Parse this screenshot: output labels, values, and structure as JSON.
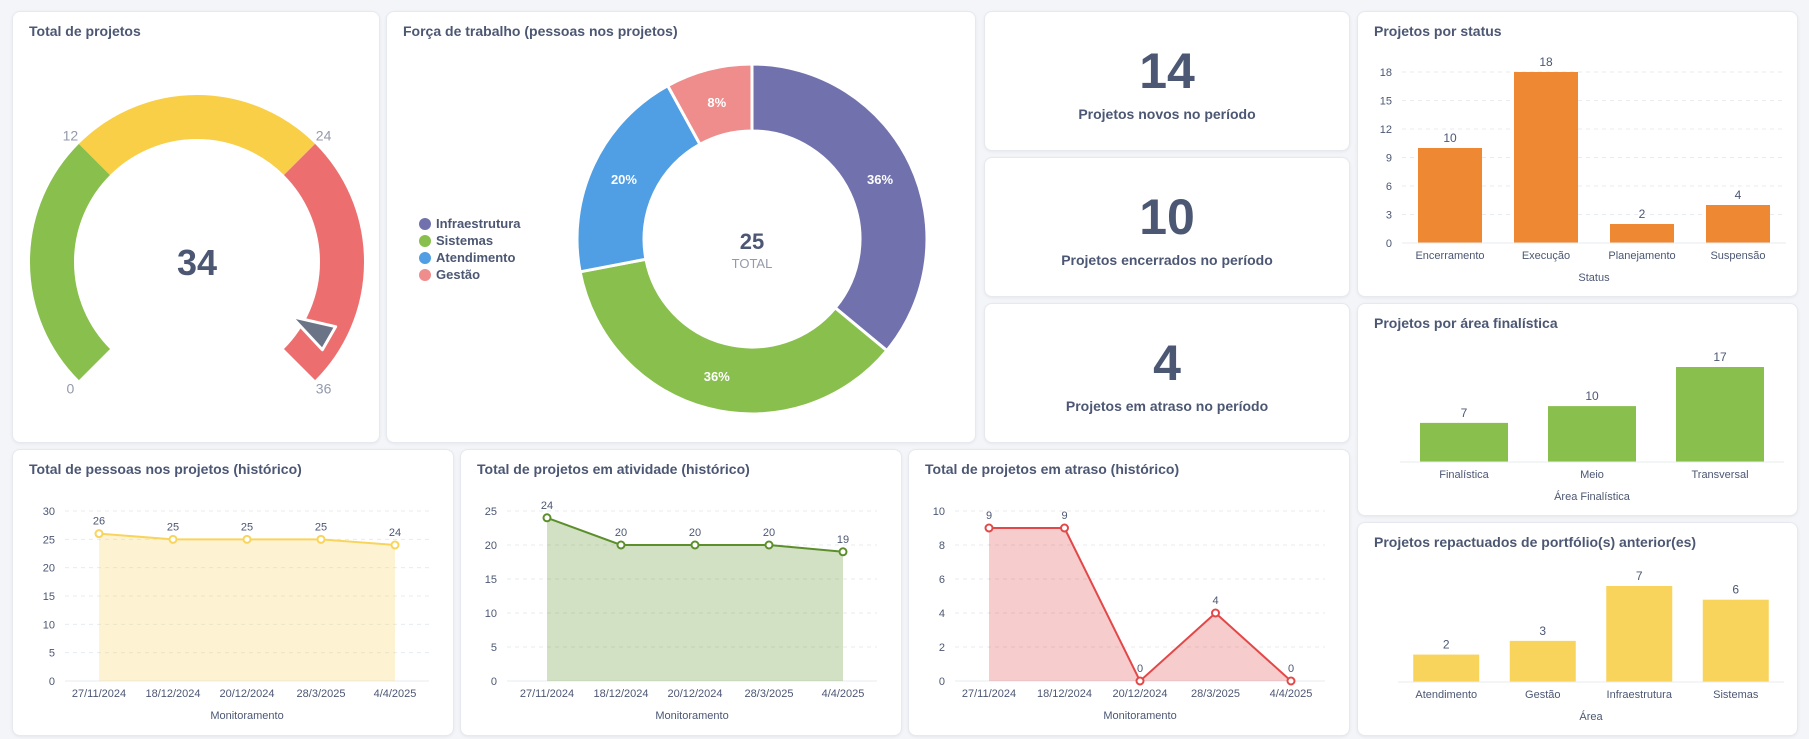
{
  "colors": {
    "purple": "#7172ad",
    "green": "#88bf4d",
    "blue": "#509ee3",
    "pink": "#ef8c8c",
    "orange": "#ef8832",
    "yellow": "#f9d45c",
    "red": "#ed6e6e",
    "gauge_yellow": "#f9cf48",
    "line_yellow": "#f9d45c",
    "line_green": "#5c8f2b",
    "line_red": "#e34848"
  },
  "gauge": {
    "title": "Total de projetos",
    "value": "34",
    "min": 0,
    "max": 36,
    "segments": [
      {
        "from": 0,
        "to": 12,
        "color": "#88bf4d"
      },
      {
        "from": 12,
        "to": 24,
        "color": "#f9cf48"
      },
      {
        "from": 24,
        "to": 36,
        "color": "#ed6e6e"
      }
    ],
    "tick_labels": [
      "0",
      "12",
      "24",
      "36"
    ]
  },
  "donut": {
    "title": "Força de trabalho (pessoas nos projetos)",
    "total": "25",
    "total_label": "TOTAL",
    "legend": [
      {
        "label": "Infraestrutura",
        "color": "#7172ad"
      },
      {
        "label": "Sistemas",
        "color": "#88bf4d"
      },
      {
        "label": "Atendimento",
        "color": "#509ee3"
      },
      {
        "label": "Gestão",
        "color": "#ef8c8c"
      }
    ]
  },
  "kpis": [
    {
      "value": "14",
      "label": "Projetos novos no período"
    },
    {
      "value": "10",
      "label": "Projetos encerrados no período"
    },
    {
      "value": "4",
      "label": "Projetos em atraso no período"
    }
  ],
  "chart_data": [
    {
      "type": "pie",
      "title": "Força de trabalho (pessoas nos projetos)",
      "categories": [
        "Infraestrutura",
        "Sistemas",
        "Atendimento",
        "Gestão"
      ],
      "values": [
        9,
        9,
        5,
        2
      ],
      "labels": [
        "36%",
        "36%",
        "20%",
        "8%"
      ],
      "total": 25
    },
    {
      "type": "bar",
      "title": "Projetos por status",
      "categories": [
        "Encerramento",
        "Execução",
        "Planejamento",
        "Suspensão"
      ],
      "values": [
        10,
        18,
        2,
        4
      ],
      "xlabel": "Status",
      "ylabel": "",
      "ylim": [
        0,
        18
      ],
      "yticks": [
        "0",
        "3",
        "6",
        "9",
        "12",
        "15",
        "18"
      ],
      "grid": true,
      "color": "#ef8832"
    },
    {
      "type": "bar",
      "title": "Projetos por área finalística",
      "categories": [
        "Finalística",
        "Meio",
        "Transversal"
      ],
      "values": [
        7,
        10,
        17
      ],
      "xlabel": "Área Finalística",
      "ylabel": "",
      "ylim": [
        0,
        17
      ],
      "grid": false,
      "color": "#88bf4d"
    },
    {
      "type": "bar",
      "title": "Projetos repactuados de portfólio(s) anterior(es)",
      "categories": [
        "Atendimento",
        "Gestão",
        "Infraestrutura",
        "Sistemas"
      ],
      "values": [
        2,
        3,
        7,
        6
      ],
      "xlabel": "Área",
      "ylabel": "",
      "ylim": [
        0,
        7
      ],
      "grid": false,
      "color": "#f9d45c"
    },
    {
      "type": "area",
      "title": "Total de pessoas nos projetos (histórico)",
      "x": [
        "27/11/2024",
        "18/12/2024",
        "20/12/2024",
        "28/3/2025",
        "4/4/2025"
      ],
      "values": [
        26,
        25,
        25,
        25,
        24
      ],
      "xlabel": "Monitoramento",
      "ylabel": "",
      "ylim": [
        0,
        30
      ],
      "yticks": [
        "0",
        "5",
        "10",
        "15",
        "20",
        "25",
        "30"
      ],
      "grid": true,
      "color": "#f9d45c"
    },
    {
      "type": "area",
      "title": "Total de projetos em atividade (histórico)",
      "x": [
        "27/11/2024",
        "18/12/2024",
        "20/12/2024",
        "28/3/2025",
        "4/4/2025"
      ],
      "values": [
        24,
        20,
        20,
        20,
        19
      ],
      "xlabel": "Monitoramento",
      "ylabel": "",
      "ylim": [
        0,
        25
      ],
      "yticks": [
        "0",
        "5",
        "10",
        "15",
        "20",
        "25"
      ],
      "grid": true,
      "color": "#5c8f2b"
    },
    {
      "type": "area",
      "title": "Total de projetos em atraso (histórico)",
      "x": [
        "27/11/2024",
        "18/12/2024",
        "20/12/2024",
        "28/3/2025",
        "4/4/2025"
      ],
      "values": [
        9,
        9,
        0,
        4,
        0
      ],
      "xlabel": "Monitoramento",
      "ylabel": "",
      "ylim": [
        0,
        10
      ],
      "yticks": [
        "0",
        "2",
        "4",
        "6",
        "8",
        "10"
      ],
      "grid": true,
      "color": "#e34848"
    }
  ]
}
